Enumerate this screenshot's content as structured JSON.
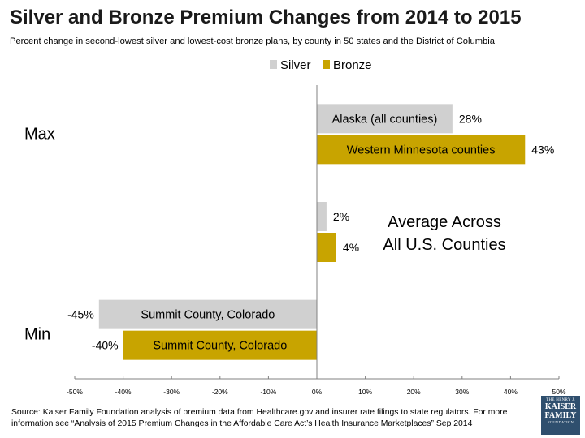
{
  "header": {
    "title": "Silver and Bronze Premium Changes from 2014 to 2015",
    "subtitle": "Percent change in second-lowest silver and lowest-cost bronze plans, by county in 50 states and the District of Columbia"
  },
  "chart_data": {
    "type": "bar",
    "orientation": "horizontal",
    "categories": [
      "Max",
      "Average Across All U.S. Counties",
      "Min"
    ],
    "category_labels": [
      "Max",
      "",
      "Min"
    ],
    "annotation": [
      "Average Across",
      "All U.S. Counties"
    ],
    "series": [
      {
        "name": "Silver",
        "color": "#d0d0d0",
        "values": [
          28,
          2,
          -45
        ],
        "value_labels": [
          "28%",
          "2%",
          "-45%"
        ],
        "bar_labels": [
          "Alaska (all counties)",
          "",
          "Summit County, Colorado"
        ]
      },
      {
        "name": "Bronze",
        "color": "#c8a400",
        "values": [
          43,
          4,
          -40
        ],
        "value_labels": [
          "43%",
          "4%",
          "-40%"
        ],
        "bar_labels": [
          "Western Minnesota counties",
          "",
          "Summit County, Colorado"
        ]
      }
    ],
    "xlim": [
      -50,
      50
    ],
    "xticks": [
      "-50%",
      "-40%",
      "-30%",
      "-20%",
      "-10%",
      "0%",
      "10%",
      "20%",
      "30%",
      "40%",
      "50%"
    ],
    "legend": "top-center",
    "grid": false
  },
  "footer": {
    "source": "Source: Kaiser Family Foundation analysis of premium data from Healthcare.gov and insurer rate filings to state regulators. For more information see “Analysis of 2015 Premium Changes in the Affordable Care Act’s Health Insurance Marketplaces” Sep 2014",
    "logo_lines": [
      "THE HENRY J.",
      "KAISER",
      "FAMILY",
      "FOUNDATION"
    ]
  }
}
